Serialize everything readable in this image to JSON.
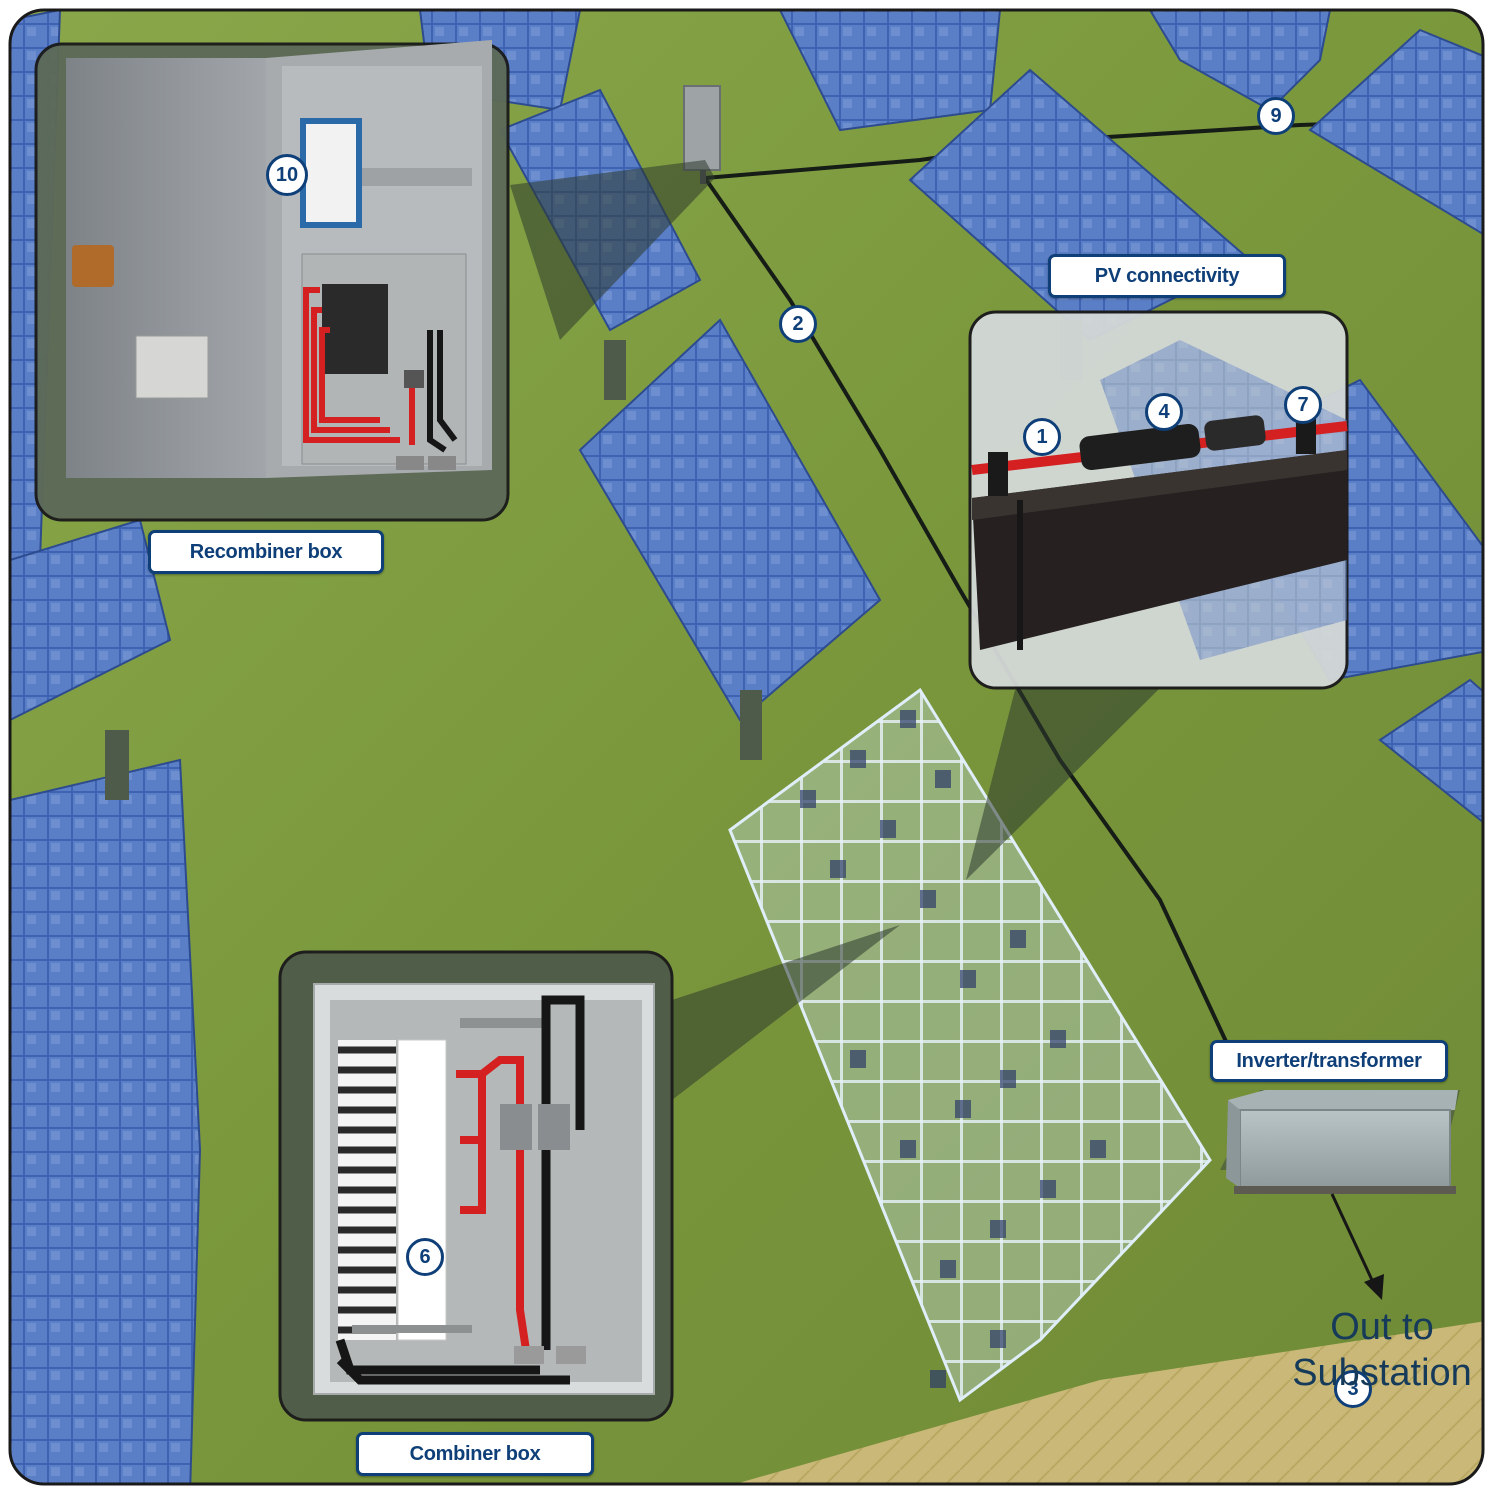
{
  "labels": {
    "recombiner": "Recombiner box",
    "pv": "PV connectivity",
    "inverter": "Inverter/transformer",
    "combiner": "Combiner box"
  },
  "badges": {
    "b1": "1",
    "b2": "2",
    "b3": "3",
    "b4": "4",
    "b6": "6",
    "b7": "7",
    "b9": "9",
    "b10": "10"
  },
  "out": {
    "line1": "Out to",
    "line2": "Substation"
  },
  "colors": {
    "grass": "#7d9a3c",
    "panel": "#3c5fb0",
    "label_border": "#0f3f78",
    "cable_red": "#d42020",
    "enclosure": "#8e9296"
  }
}
